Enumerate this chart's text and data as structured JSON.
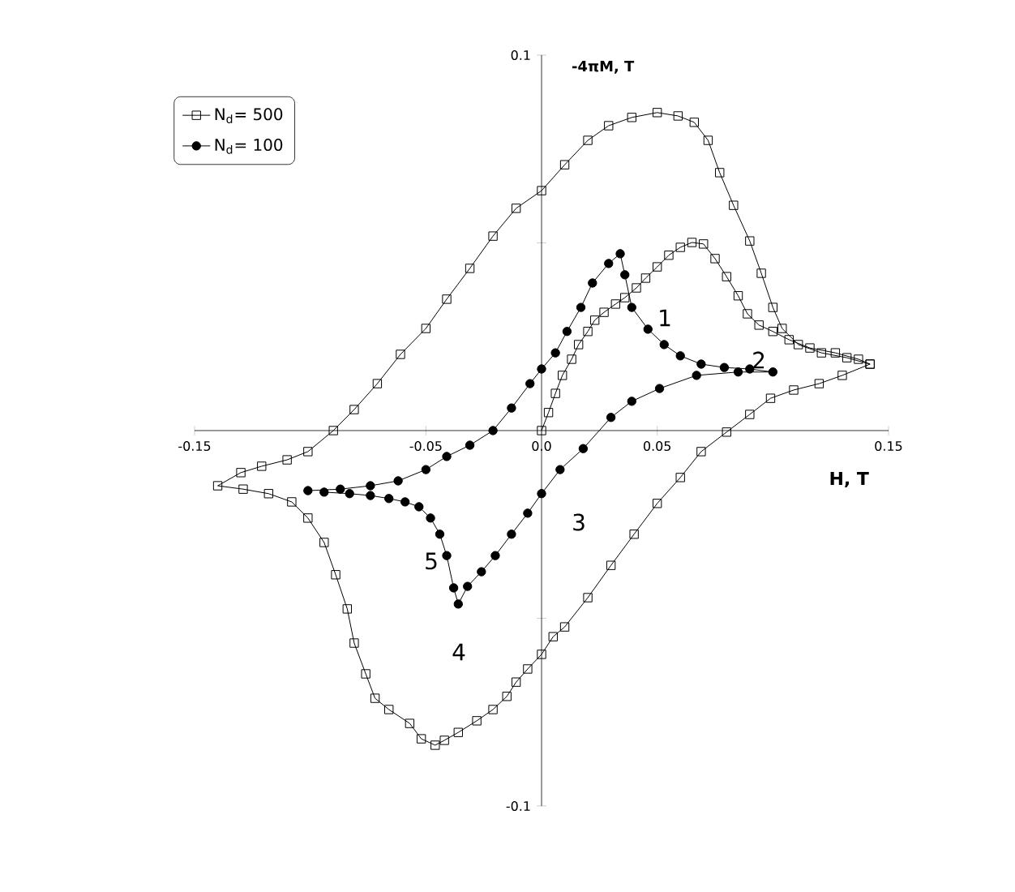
{
  "chart_data": {
    "type": "line",
    "xlabel": "H, T",
    "ylabel": "-4πM, T",
    "xlim": [
      -0.15,
      0.15
    ],
    "ylim": [
      -0.1,
      0.1
    ],
    "xticks": [
      -0.15,
      -0.05,
      {
        "value": 0,
        "label": "0.0"
      },
      0.05,
      0.15
    ],
    "yticks": [
      -0.1,
      {
        "value": -0.05,
        "label": null
      },
      {
        "value": 0.05,
        "label": null
      },
      0.1
    ],
    "legend": "top left",
    "grid": false,
    "line_style": "solid",
    "series": [
      {
        "name": "N$_{d}$= 500",
        "color": "#000000",
        "marker": "square",
        "x": [
          0.0,
          0.003,
          0.006,
          0.009,
          0.013,
          0.016,
          0.02,
          0.023,
          0.027,
          0.032,
          0.036,
          0.041,
          0.045,
          0.05,
          0.055,
          0.06,
          0.065,
          0.07,
          0.075,
          0.08,
          0.085,
          0.089,
          0.094,
          0.1,
          0.107,
          0.116,
          0.127,
          0.137,
          0.142,
          0.13,
          0.12,
          0.109,
          0.099,
          0.09,
          0.08,
          0.069,
          0.06,
          0.05,
          0.04,
          0.03,
          0.02,
          0.01,
          0.005,
          0.0,
          -0.006,
          -0.011,
          -0.015,
          -0.021,
          -0.028,
          -0.036,
          -0.042,
          -0.046,
          -0.052,
          -0.057,
          -0.066,
          -0.072,
          -0.076,
          -0.081,
          -0.084,
          -0.089,
          -0.094,
          -0.101,
          -0.108,
          -0.118,
          -0.129,
          -0.14,
          -0.13,
          -0.121,
          -0.11,
          -0.101,
          -0.09,
          -0.081,
          -0.071,
          -0.061,
          -0.05,
          -0.041,
          -0.031,
          -0.021,
          -0.011,
          0.0,
          0.01,
          0.02,
          0.029,
          0.039,
          0.05,
          0.059,
          0.066,
          0.072,
          0.077,
          0.083,
          0.09,
          0.095,
          0.1,
          0.104,
          0.111,
          0.121,
          0.132,
          0.142
        ],
        "values": [
          0.0,
          0.0048,
          0.0099,
          0.0147,
          0.019,
          0.0229,
          0.0264,
          0.0294,
          0.0315,
          0.0337,
          0.0354,
          0.038,
          0.0406,
          0.0436,
          0.0467,
          0.0488,
          0.0501,
          0.0497,
          0.0458,
          0.041,
          0.0359,
          0.0311,
          0.0281,
          0.0264,
          0.0242,
          0.022,
          0.0207,
          0.019,
          0.0177,
          0.0147,
          0.0125,
          0.0108,
          0.0086,
          0.0043,
          -0.0004,
          -0.0056,
          -0.0125,
          -0.0194,
          -0.0276,
          -0.0359,
          -0.0445,
          -0.0523,
          -0.0549,
          -0.0596,
          -0.0635,
          -0.067,
          -0.0708,
          -0.0743,
          -0.0773,
          -0.0804,
          -0.0825,
          -0.0838,
          -0.0821,
          -0.078,
          -0.0743,
          -0.0713,
          -0.0648,
          -0.0566,
          -0.0475,
          -0.0384,
          -0.0298,
          -0.0233,
          -0.019,
          -0.0168,
          -0.0156,
          -0.0147,
          -0.0112,
          -0.0095,
          -0.0078,
          -0.0056,
          0.0,
          0.0056,
          0.0125,
          0.0203,
          0.0272,
          0.035,
          0.0432,
          0.0518,
          0.0592,
          0.0639,
          0.0708,
          0.0773,
          0.0812,
          0.0834,
          0.0847,
          0.0838,
          0.0821,
          0.0773,
          0.0687,
          0.06,
          0.0505,
          0.0419,
          0.0328,
          0.0272,
          0.0229,
          0.0207,
          0.0194,
          0.0177
        ]
      },
      {
        "name": "N$_{d}$= 100",
        "color": "#000000",
        "marker": "circle",
        "x": [
          -0.101,
          -0.087,
          -0.074,
          -0.062,
          -0.05,
          -0.041,
          -0.031,
          -0.021,
          -0.013,
          -0.005,
          0.0,
          0.006,
          0.011,
          0.017,
          0.022,
          0.029,
          0.034,
          0.036,
          0.039,
          0.046,
          0.053,
          0.06,
          0.069,
          0.079,
          0.09,
          0.1,
          0.085,
          0.067,
          0.051,
          0.039,
          0.03,
          0.018,
          0.008,
          0.0,
          -0.006,
          -0.013,
          -0.02,
          -0.026,
          -0.032,
          -0.036,
          -0.038,
          -0.041,
          -0.044,
          -0.048,
          -0.053,
          -0.059,
          -0.066,
          -0.074,
          -0.083,
          -0.094
        ],
        "values": [
          -0.016,
          -0.0156,
          -0.0147,
          -0.0134,
          -0.0104,
          -0.0069,
          -0.0039,
          0.0,
          0.006,
          0.0125,
          0.0164,
          0.0207,
          0.0264,
          0.0328,
          0.0393,
          0.0445,
          0.0471,
          0.0415,
          0.0328,
          0.027,
          0.0229,
          0.0199,
          0.0177,
          0.0168,
          0.0164,
          0.0156,
          0.0156,
          0.0147,
          0.0112,
          0.0078,
          0.0035,
          -0.0048,
          -0.0104,
          -0.0168,
          -0.022,
          -0.0276,
          -0.0333,
          -0.0376,
          -0.0415,
          -0.0462,
          -0.0419,
          -0.0333,
          -0.0276,
          -0.0233,
          -0.0203,
          -0.019,
          -0.0181,
          -0.0173,
          -0.0168,
          -0.0164
        ]
      }
    ],
    "annotations": [
      "1",
      "2",
      "3",
      "4",
      "5"
    ]
  }
}
